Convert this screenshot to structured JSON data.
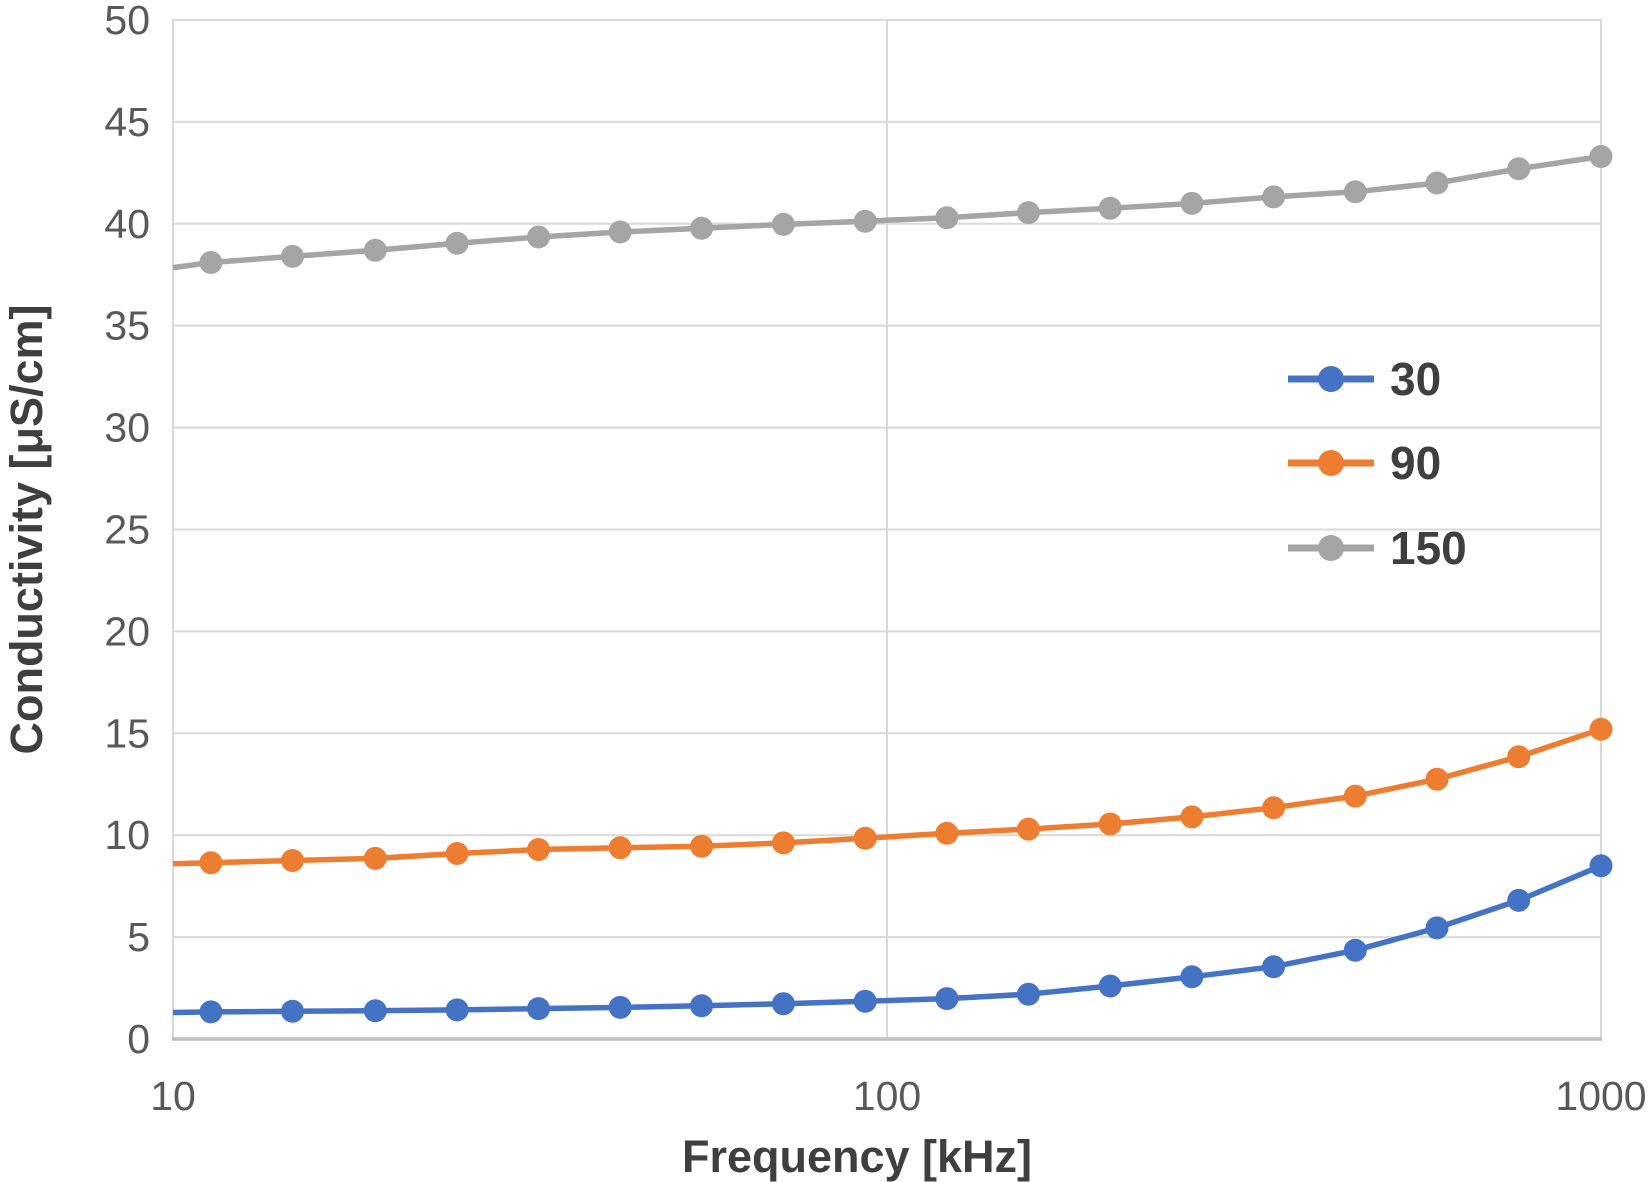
{
  "chart_data": {
    "type": "line",
    "title": "",
    "xlabel": "Frequency [kHz]",
    "ylabel": "Conductivity [μS/cm]",
    "x_scale": "log",
    "xlim": [
      10,
      1000
    ],
    "ylim": [
      0,
      50
    ],
    "y_tick_step": 5,
    "y_tick_labels": [
      "0",
      "5",
      "10",
      "15",
      "20",
      "25",
      "30",
      "35",
      "40",
      "45",
      "50"
    ],
    "x_tick_labels": [
      "10",
      "100",
      "1000"
    ],
    "x_ticks": [
      10,
      100,
      1000
    ],
    "grid": true,
    "legend_position": "inside-right",
    "x": [
      10,
      11.3,
      14.7,
      19.2,
      25,
      32.5,
      42.3,
      55,
      71.6,
      93.2,
      121.3,
      157.8,
      205.4,
      267.3,
      347.9,
      452.8,
      589.3,
      766.9,
      1000
    ],
    "series": [
      {
        "name": "30",
        "color": "#4472C4",
        "values": [
          1.3,
          1.33,
          1.36,
          1.39,
          1.43,
          1.49,
          1.55,
          1.63,
          1.73,
          1.85,
          1.98,
          2.2,
          2.6,
          3.05,
          3.55,
          4.35,
          5.45,
          6.8,
          8.5
        ]
      },
      {
        "name": "90",
        "color": "#ED7D31",
        "values": [
          8.6,
          8.65,
          8.76,
          8.86,
          9.1,
          9.3,
          9.38,
          9.46,
          9.62,
          9.85,
          10.1,
          10.3,
          10.55,
          10.9,
          11.35,
          11.92,
          12.75,
          13.85,
          15.2
        ]
      },
      {
        "name": "150",
        "color": "#A5A5A5",
        "values": [
          37.85,
          38.1,
          38.4,
          38.7,
          39.05,
          39.35,
          39.6,
          39.78,
          39.97,
          40.13,
          40.3,
          40.55,
          40.76,
          41.0,
          41.32,
          41.57,
          42.0,
          42.7,
          43.3
        ]
      }
    ]
  },
  "style": {
    "gridline_color": "#D9D9D9",
    "axis_line_color": "#BFBFBF",
    "tick_label_color": "#595959",
    "title_color": "#3F3F3F",
    "background": "#FFFFFF"
  }
}
